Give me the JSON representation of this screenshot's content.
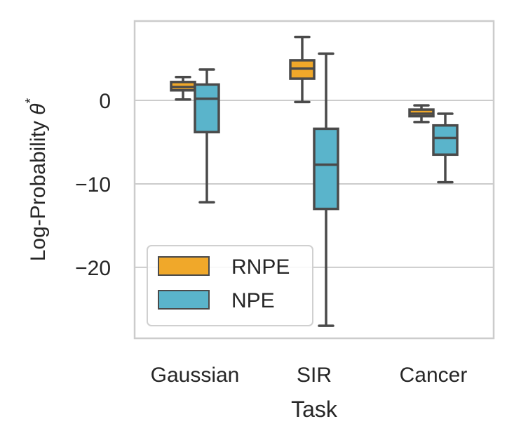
{
  "chart_data": {
    "type": "box",
    "title": "",
    "xlabel": "Task",
    "ylabel": "Log-Probability θ*",
    "ylabel_main": "Log-Probability ",
    "ylabel_symbol": "θ",
    "ylabel_sup": "*",
    "ylim": [
      -28.5,
      9.5
    ],
    "yticks": [
      0,
      -10,
      -20
    ],
    "ytick_labels": [
      "0",
      "−10",
      "−20"
    ],
    "grid": "y",
    "legend_position": "lower-left",
    "categories": [
      "Gaussian",
      "SIR",
      "Cancer"
    ],
    "series": [
      {
        "name": "RNPE",
        "color": "#f0a82a",
        "boxes": [
          {
            "whisker_low": 0.1,
            "q1": 1.2,
            "median": 1.6,
            "q3": 2.2,
            "whisker_high": 2.8
          },
          {
            "whisker_low": -0.2,
            "q1": 2.6,
            "median": 3.8,
            "q3": 4.8,
            "whisker_high": 7.6
          },
          {
            "whisker_low": -2.6,
            "q1": -1.9,
            "median": -1.6,
            "q3": -1.1,
            "whisker_high": -0.6
          }
        ]
      },
      {
        "name": "NPE",
        "color": "#5ab4cb",
        "boxes": [
          {
            "whisker_low": -12.2,
            "q1": -3.8,
            "median": 0.2,
            "q3": 1.9,
            "whisker_high": 3.7
          },
          {
            "whisker_low": -27.0,
            "q1": -13.0,
            "median": -7.7,
            "q3": -3.4,
            "whisker_high": 5.6
          },
          {
            "whisker_low": -9.8,
            "q1": -6.5,
            "median": -4.5,
            "q3": -3.0,
            "whisker_high": -1.6
          }
        ]
      }
    ]
  }
}
